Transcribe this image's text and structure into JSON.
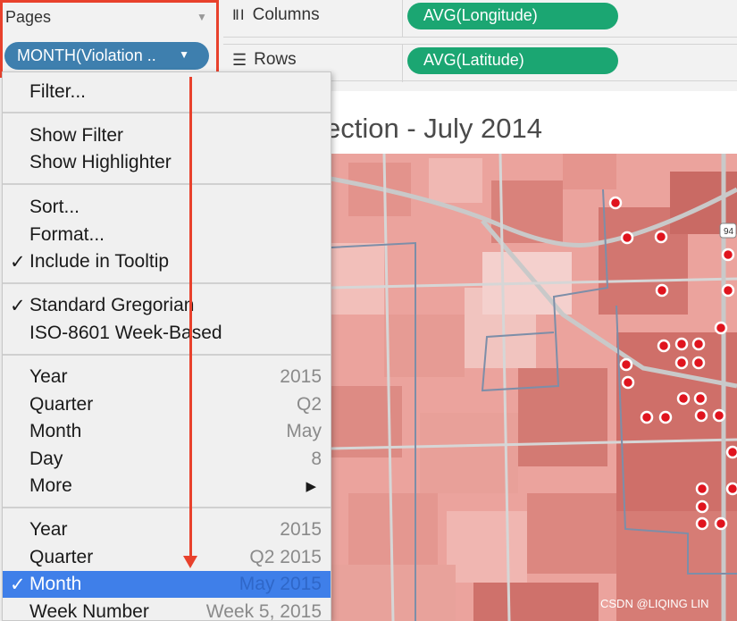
{
  "shelves": {
    "columns": {
      "label": "Columns",
      "pill": "AVG(Longitude)"
    },
    "rows": {
      "label": "Rows",
      "pill": "AVG(Latitude)"
    }
  },
  "pages_card": {
    "title": "Pages",
    "pill": "MONTH(Violation ..",
    "pill_color": "#3e7fae"
  },
  "viz": {
    "title": "ection  - July 2014",
    "highway_label": "94"
  },
  "menu": {
    "items": [
      {
        "label": "Filter...",
        "check": "",
        "value": ""
      },
      {
        "label": "Show Filter",
        "check": "",
        "value": ""
      },
      {
        "label": "Show Highlighter",
        "check": "",
        "value": ""
      },
      {
        "label": "Sort...",
        "check": "",
        "value": ""
      },
      {
        "label": "Format...",
        "check": "",
        "value": ""
      },
      {
        "label": "Include in Tooltip",
        "check": "✓",
        "value": ""
      },
      {
        "label": "Standard Gregorian",
        "check": "✓",
        "value": ""
      },
      {
        "label": "ISO-8601 Week-Based",
        "check": "",
        "value": ""
      },
      {
        "label": "Year",
        "check": "",
        "value": "2015"
      },
      {
        "label": "Quarter",
        "check": "",
        "value": "Q2"
      },
      {
        "label": "Month",
        "check": "",
        "value": "May"
      },
      {
        "label": "Day",
        "check": "",
        "value": "8"
      },
      {
        "label": "More",
        "check": "",
        "value": "",
        "submenu": "▶"
      },
      {
        "label": "Year",
        "check": "",
        "value": "2015"
      },
      {
        "label": "Quarter",
        "check": "",
        "value": "Q2 2015"
      },
      {
        "label": "Month",
        "check": "✓",
        "value": "May 2015",
        "selected": true
      },
      {
        "label": "Week Number",
        "check": "",
        "value": "Week 5, 2015"
      }
    ]
  },
  "icons": {
    "columns": "columns-icon",
    "rows": "rows-icon",
    "dropdown": "caret-down-icon",
    "submenu": "triangle-right-icon"
  },
  "colors": {
    "accent_green": "#1ba672",
    "highlight_red": "#e8412c",
    "selected_blue": "#3f7fe9",
    "marker_red": "#e0141e"
  },
  "watermark": "CSDN @LIQING LIN"
}
